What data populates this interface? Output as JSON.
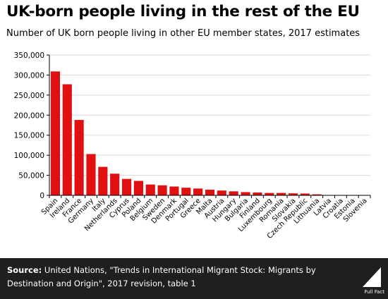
{
  "header": {
    "title": "UK-born people living in the rest of the EU",
    "subtitle": "Number of UK born people living in other EU member states, 2017 estimates"
  },
  "footer": {
    "source_label": "Source:",
    "source_text": " United Nations, \"Trends in International Migrant Stock: Migrants by Destination and Origin\", 2017 revision, table 1",
    "logo_text": "Full Fact",
    "logo_icon": "full-fact-triangle-icon"
  },
  "colors": {
    "bar": "#e01010",
    "footer_bg": "#1f1f1f",
    "grid": "#d9d9d9"
  },
  "chart_data": {
    "type": "bar",
    "title": "UK-born people living in the rest of the EU",
    "subtitle": "Number of UK born people living in other EU member states, 2017 estimates",
    "xlabel": "",
    "ylabel": "",
    "ylim": [
      0,
      350000
    ],
    "yticks": [
      0,
      50000,
      100000,
      150000,
      200000,
      250000,
      300000,
      350000
    ],
    "ytick_labels": [
      "0",
      "50,000",
      "100,000",
      "150,000",
      "200,000",
      "250,000",
      "300,000",
      "350,000"
    ],
    "grid": true,
    "legend": "none",
    "categories": [
      "Spain",
      "Ireland",
      "France",
      "Germany",
      "Italy",
      "Netherlands",
      "Cyprus",
      "Poland",
      "Belgium",
      "Sweden",
      "Denmark",
      "Portugal",
      "Greece",
      "Malta",
      "Austria",
      "Hungary",
      "Bulgaria",
      "Finland",
      "Luxembourg",
      "Romania",
      "Slovakia",
      "Czech Republic",
      "Lithuania",
      "Latvia",
      "Croatia",
      "Estonia",
      "Slovenia"
    ],
    "values": [
      309000,
      277000,
      188000,
      103000,
      71000,
      54000,
      41000,
      36000,
      27000,
      25000,
      22000,
      19000,
      17000,
      14000,
      12000,
      10000,
      8000,
      7000,
      6000,
      6000,
      5000,
      4500,
      2500,
      800,
      700,
      500,
      500
    ]
  }
}
